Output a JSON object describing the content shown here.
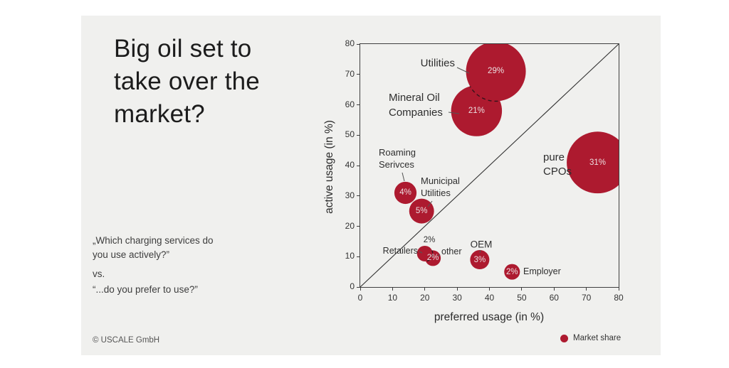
{
  "page": {
    "background": "#ffffff",
    "card_background": "#f0f0ee"
  },
  "title": "Big oil set to\ntake over the\nmarket?",
  "questions": {
    "question1": "„Which charging services do\nyou use actively?”",
    "vs": "vs.",
    "question2": "“...do you prefer to use?”"
  },
  "footer": "© USCALE GmbH",
  "chart_data": {
    "type": "scatter",
    "variant": "bubble",
    "xlabel": "preferred usage (in %)",
    "ylabel": "active usage (in %)",
    "xlim": [
      0,
      80
    ],
    "ylim": [
      0,
      80
    ],
    "xticks": [
      0,
      10,
      20,
      30,
      40,
      50,
      60,
      70,
      80
    ],
    "yticks": [
      0,
      10,
      20,
      30,
      40,
      50,
      60,
      70,
      80
    ],
    "diagonal_line": true,
    "grid": false,
    "bubble_color": "#ad1a2f",
    "size_legend_label": "Market share",
    "points": [
      {
        "name": "Mineral Oil Companies",
        "label": "Mineral Oil\nCompanies",
        "x": 36,
        "y": 58,
        "share_pct": 21
      },
      {
        "name": "Utilities",
        "label": "Utilities",
        "x": 42,
        "y": 71,
        "share_pct": 29
      },
      {
        "name": "Roaming Serivces",
        "label": "Roaming\nSerivces",
        "x": 14,
        "y": 31,
        "share_pct": 4
      },
      {
        "name": "Municipal Utilities",
        "label": "Municipal\nUtilities",
        "x": 19,
        "y": 25,
        "share_pct": 5
      },
      {
        "name": "other",
        "label": "other",
        "x": 22.5,
        "y": 9.5,
        "share_pct": 2
      },
      {
        "name": "Retailers",
        "label": "Retailers",
        "x": 20,
        "y": 11,
        "share_pct": 2
      },
      {
        "name": "OEM",
        "label": "OEM",
        "x": 37,
        "y": 9,
        "share_pct": 3
      },
      {
        "name": "Employer",
        "label": "Employer",
        "x": 47,
        "y": 5,
        "share_pct": 2
      },
      {
        "name": "pure CPOs",
        "label": "pure\nCPOs",
        "x": 73.5,
        "y": 41,
        "share_pct": 31
      }
    ]
  }
}
